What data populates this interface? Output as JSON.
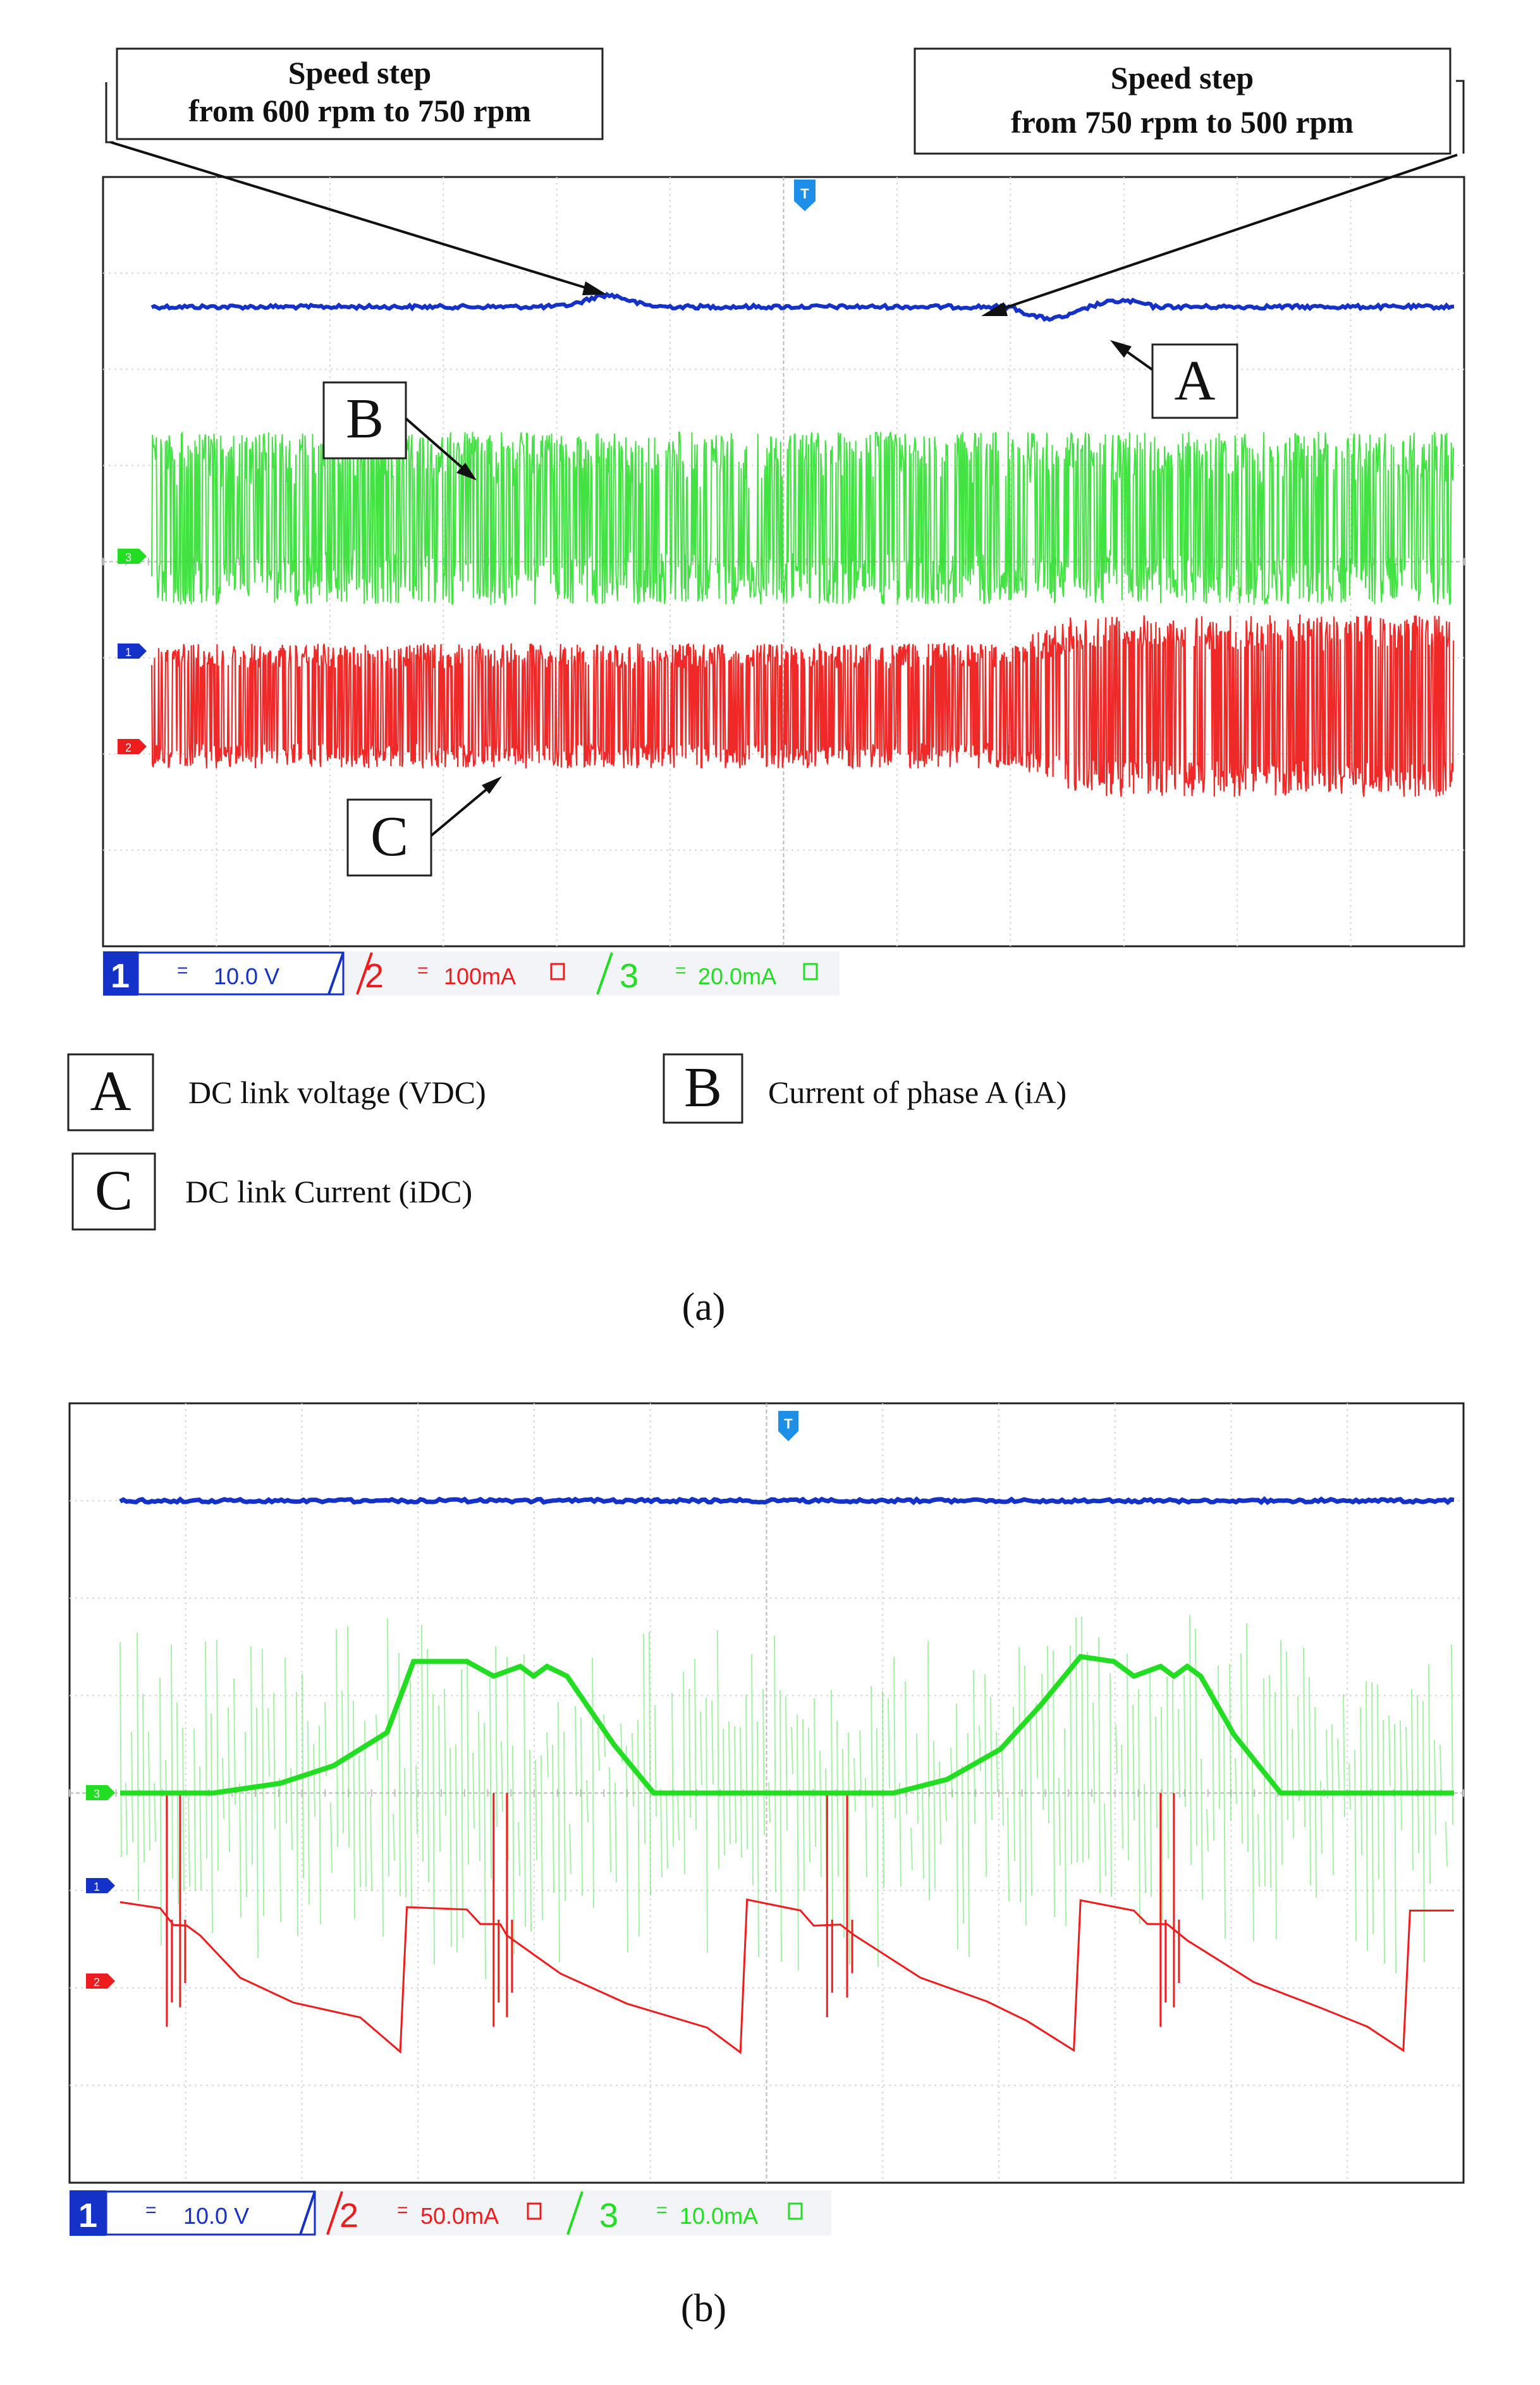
{
  "chart_data": [
    {
      "panel_label": "(a)",
      "type": "line",
      "title": "",
      "xlabel": "",
      "ylabel": "",
      "grid": true,
      "grid_divisions": {
        "x": 12,
        "y": 8
      },
      "trigger_marker": "T",
      "callouts": [
        {
          "line1": "Speed step",
          "line2": "from 600 rpm to 750 rpm"
        },
        {
          "line1": "Speed step",
          "line2": "from 750 rpm to 500 rpm"
        }
      ],
      "trace_labels": {
        "A": "A",
        "B": "B",
        "C": "C"
      },
      "channel_markers": [
        "3",
        "1",
        "2"
      ],
      "channels": [
        {
          "num": "1",
          "scale": "10.0 V",
          "color": "#1431c8"
        },
        {
          "num": "2",
          "scale": "100mA",
          "color": "#ee1c1c"
        },
        {
          "num": "3",
          "scale": "20.0mA",
          "color": "#22dd22"
        }
      ],
      "series": [
        {
          "name": "A",
          "color": "#1431c8",
          "baseline_div": 1.35,
          "events": [
            {
              "x": 0.35,
              "dy": -0.12
            },
            {
              "x": 0.66,
              "dy": 0.12
            }
          ]
        },
        {
          "name": "B",
          "color": "#22dd22",
          "center_div": 3.55,
          "amplitude_div": 0.9
        },
        {
          "name": "C",
          "color": "#ee1c1c",
          "center_div": 5.5,
          "amplitude_div_before": 0.65,
          "amplitude_div_after": 0.95,
          "step_x": 0.66
        }
      ],
      "legend": [
        {
          "key": "A",
          "text": "DC link voltage (VDC)"
        },
        {
          "key": "B",
          "text": "Current of phase A  (iA)"
        },
        {
          "key": "C",
          "text": "DC link Current (iDC)"
        }
      ]
    },
    {
      "panel_label": "(b)",
      "type": "line",
      "title": "",
      "xlabel": "",
      "ylabel": "",
      "grid": true,
      "grid_divisions": {
        "x": 12,
        "y": 8
      },
      "trigger_marker": "T",
      "channel_markers": [
        "3",
        "1",
        "2"
      ],
      "channels": [
        {
          "num": "1",
          "scale": "10.0 V",
          "color": "#1431c8"
        },
        {
          "num": "2",
          "scale": "50.0mA",
          "color": "#ee1c1c"
        },
        {
          "num": "3",
          "scale": "10.0mA",
          "color": "#22dd22"
        }
      ],
      "series": [
        {
          "name": "VDC",
          "color": "#1431c8",
          "baseline_div": 1.0
        },
        {
          "name": "iA",
          "color": "#22dd22",
          "baseline_div": 4.0,
          "points": [
            [
              0.0,
              0.0
            ],
            [
              0.07,
              0.0
            ],
            [
              0.12,
              0.1
            ],
            [
              0.16,
              0.28
            ],
            [
              0.2,
              0.62
            ],
            [
              0.22,
              1.35
            ],
            [
              0.26,
              1.35
            ],
            [
              0.28,
              1.2
            ],
            [
              0.3,
              1.3
            ],
            [
              0.31,
              1.2
            ],
            [
              0.32,
              1.3
            ],
            [
              0.335,
              1.2
            ],
            [
              0.37,
              0.5
            ],
            [
              0.4,
              0.0
            ],
            [
              0.58,
              0.0
            ],
            [
              0.62,
              0.14
            ],
            [
              0.66,
              0.45
            ],
            [
              0.69,
              0.9
            ],
            [
              0.72,
              1.4
            ],
            [
              0.745,
              1.35
            ],
            [
              0.76,
              1.2
            ],
            [
              0.78,
              1.3
            ],
            [
              0.79,
              1.2
            ],
            [
              0.8,
              1.3
            ],
            [
              0.81,
              1.2
            ],
            [
              0.835,
              0.6
            ],
            [
              0.87,
              0.0
            ],
            [
              1.0,
              0.0
            ]
          ]
        },
        {
          "name": "iDC",
          "color": "#ee1c1c",
          "points": [
            [
              0.0,
              5.13
            ],
            [
              0.03,
              5.18
            ],
            [
              0.04,
              5.35
            ],
            [
              0.05,
              5.35
            ],
            [
              0.06,
              5.45
            ],
            [
              0.09,
              5.9
            ],
            [
              0.13,
              6.15
            ],
            [
              0.18,
              6.3
            ],
            [
              0.21,
              6.65
            ],
            [
              0.215,
              5.18
            ],
            [
              0.26,
              5.2
            ],
            [
              0.27,
              5.35
            ],
            [
              0.285,
              5.35
            ],
            [
              0.29,
              5.45
            ],
            [
              0.33,
              5.85
            ],
            [
              0.38,
              6.15
            ],
            [
              0.44,
              6.4
            ],
            [
              0.465,
              6.65
            ],
            [
              0.47,
              5.1
            ],
            [
              0.51,
              5.2
            ],
            [
              0.52,
              5.35
            ],
            [
              0.54,
              5.35
            ],
            [
              0.55,
              5.45
            ],
            [
              0.6,
              5.9
            ],
            [
              0.65,
              6.15
            ],
            [
              0.68,
              6.35
            ],
            [
              0.715,
              6.65
            ],
            [
              0.72,
              5.1
            ],
            [
              0.76,
              5.2
            ],
            [
              0.77,
              5.35
            ],
            [
              0.785,
              5.35
            ],
            [
              0.8,
              5.5
            ],
            [
              0.85,
              5.95
            ],
            [
              0.9,
              6.2
            ],
            [
              0.935,
              6.4
            ],
            [
              0.962,
              6.65
            ],
            [
              0.967,
              5.2
            ],
            [
              1.0,
              5.2
            ]
          ],
          "dips": [
            {
              "x": 0.035,
              "to": 6.4
            },
            {
              "x": 0.045,
              "to": 6.2
            },
            {
              "x": 0.28,
              "to": 6.4
            },
            {
              "x": 0.29,
              "to": 6.3
            },
            {
              "x": 0.53,
              "to": 6.3
            },
            {
              "x": 0.545,
              "to": 6.1
            },
            {
              "x": 0.78,
              "to": 6.4
            },
            {
              "x": 0.79,
              "to": 6.2
            }
          ]
        }
      ]
    }
  ]
}
